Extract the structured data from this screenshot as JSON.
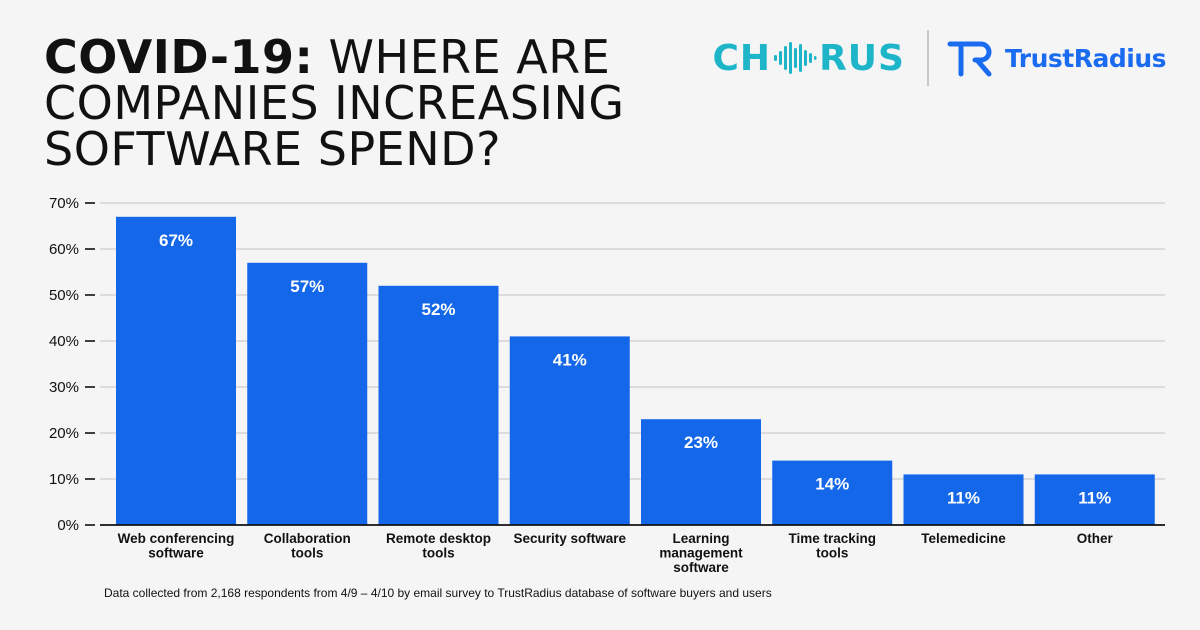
{
  "header": {
    "title_bold": "COVID-19:",
    "title_rest": " WHERE ARE COMPANIES INCREASING SOFTWARE SPEND?"
  },
  "logos": {
    "chorus_left": "CH",
    "chorus_right": "RUS",
    "chorus_icon": "soundwave-icon",
    "trustradius_text": "TrustRadius",
    "trustradius_icon": "trustradius-mark-icon"
  },
  "colors": {
    "bar": "#1367e8",
    "grid": "#dcdcdf",
    "chorus": "#1fb5c9",
    "trustradius": "#1b6bf0"
  },
  "chart_data": {
    "type": "bar",
    "title": "COVID-19: WHERE ARE COMPANIES INCREASING SOFTWARE SPEND?",
    "xlabel": "",
    "ylabel": "",
    "ylim": [
      0,
      70
    ],
    "yticks": [
      0,
      10,
      20,
      30,
      40,
      50,
      60,
      70
    ],
    "ytick_labels": [
      "0%",
      "10%",
      "20%",
      "30%",
      "40%",
      "50%",
      "60%",
      "70%"
    ],
    "grid": true,
    "categories": [
      [
        "Web conferencing",
        "software"
      ],
      [
        "Collaboration",
        "tools"
      ],
      [
        "Remote desktop",
        "tools"
      ],
      [
        "Security software"
      ],
      [
        "Learning",
        "management",
        "software"
      ],
      [
        "Time tracking",
        "tools"
      ],
      [
        "Telemedicine"
      ],
      [
        "Other"
      ]
    ],
    "values": [
      67,
      57,
      52,
      41,
      23,
      14,
      11,
      11
    ],
    "value_labels": [
      "67%",
      "57%",
      "52%",
      "41%",
      "23%",
      "14%",
      "11%",
      "11%"
    ]
  },
  "footnote": "Data collected from 2,168 respondents from 4/9 – 4/10 by email survey to TrustRadius database of software buyers and users"
}
